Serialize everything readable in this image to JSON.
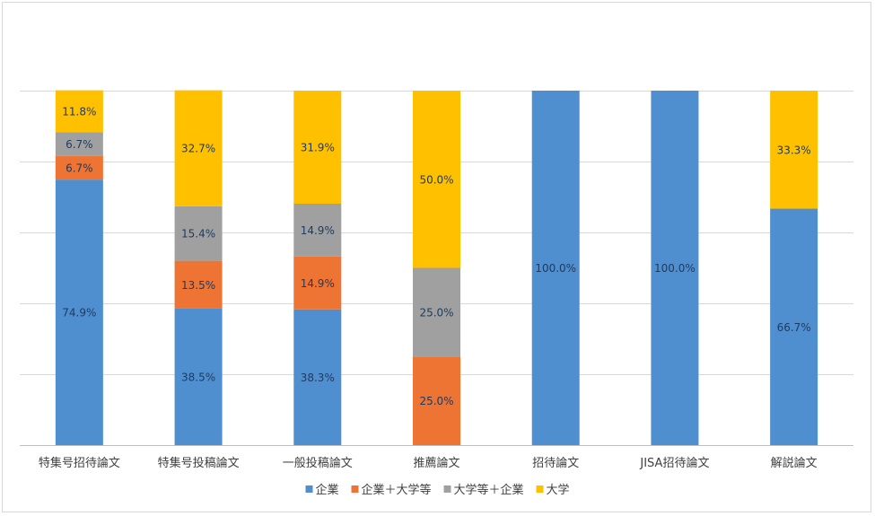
{
  "chart_data": {
    "type": "bar",
    "stacked": true,
    "percent_stacked": true,
    "title": "",
    "xlabel": "",
    "ylabel": "",
    "ylim": [
      0,
      100
    ],
    "grid": true,
    "legend_position": "bottom",
    "categories": [
      "特集号招待論文",
      "特集号投稿論文",
      "一般投稿論文",
      "推薦論文",
      "招待論文",
      "JISA招待論文",
      "解説論文"
    ],
    "series": [
      {
        "name": "企業",
        "color": "#4f8fcf",
        "label_color": "#1f3a5f",
        "values": [
          74.9,
          38.5,
          38.3,
          0,
          100.0,
          100.0,
          66.7
        ]
      },
      {
        "name": "企業＋大学等",
        "color": "#ed7432",
        "label_color": "#1f3a5f",
        "values": [
          6.7,
          13.5,
          14.9,
          25.0,
          0,
          0,
          0
        ]
      },
      {
        "name": "大学等＋企業",
        "color": "#a0a0a0",
        "label_color": "#1f3a5f",
        "values": [
          6.7,
          15.4,
          14.9,
          25.0,
          0,
          0,
          0
        ]
      },
      {
        "name": "大学",
        "color": "#ffc000",
        "label_color": "#1f3a5f",
        "values": [
          11.8,
          32.7,
          31.9,
          50.0,
          0,
          0,
          33.3
        ]
      }
    ],
    "value_labels": [
      [
        "74.9%",
        "38.5%",
        "38.3%",
        "",
        "100.0%",
        "100.0%",
        "66.7%"
      ],
      [
        "6.7%",
        "13.5%",
        "14.9%",
        "25.0%",
        "",
        "",
        ""
      ],
      [
        "6.7%",
        "15.4%",
        "14.9%",
        "25.0%",
        "",
        "",
        ""
      ],
      [
        "11.8%",
        "32.7%",
        "31.9%",
        "50.0%",
        "",
        "",
        "33.3%"
      ]
    ],
    "grid_lines": [
      0,
      20,
      40,
      60,
      80,
      100
    ]
  }
}
